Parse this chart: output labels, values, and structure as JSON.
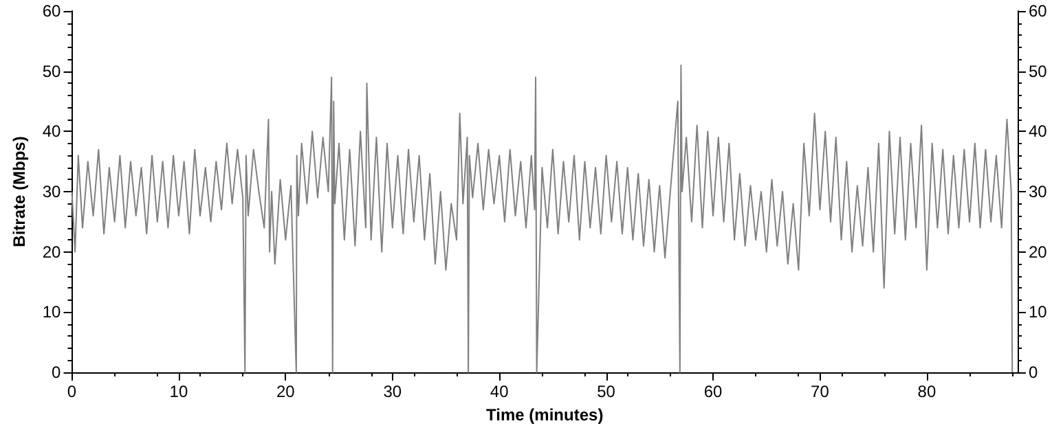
{
  "chart_data": {
    "type": "line",
    "xlabel": "Time (minutes)",
    "ylabel": "Bitrate (Mbps)",
    "xlim": [
      0,
      88.5
    ],
    "xticks": [
      0,
      10,
      20,
      30,
      40,
      50,
      60,
      70,
      80
    ],
    "ylim": [
      0,
      60
    ],
    "yticks": [
      0,
      10,
      20,
      30,
      40,
      50,
      60
    ],
    "y2lim": [
      0,
      60
    ],
    "y2ticks": [
      0,
      10,
      20,
      30,
      40,
      50,
      60
    ],
    "grid": false,
    "marker": "none",
    "line_style": "solid",
    "series": [
      {
        "color": "#808080",
        "x": [
          0,
          0.3,
          0.6,
          1,
          1.5,
          2,
          2.5,
          3,
          3.5,
          4,
          4.5,
          5,
          5.5,
          6,
          6.5,
          7,
          7.5,
          8,
          8.5,
          9,
          9.5,
          10,
          10.5,
          11,
          11.5,
          12,
          12.5,
          13,
          13.5,
          14,
          14.5,
          15,
          15.5,
          16,
          16.2,
          16.3,
          16.5,
          17,
          17.5,
          18,
          18.4,
          18.5,
          18.7,
          19,
          19.5,
          20,
          20.5,
          21,
          21.05,
          21.2,
          21.5,
          22,
          22.5,
          23,
          23.5,
          24,
          24.3,
          24.4,
          24.5,
          24.6,
          25,
          25.5,
          26,
          26.5,
          27,
          27.5,
          27.6,
          28,
          28.5,
          29,
          29.5,
          30,
          30.5,
          31,
          31.5,
          32,
          32.5,
          33,
          33.5,
          34,
          34.5,
          35,
          35.5,
          36,
          36.3,
          36.6,
          37,
          37.1,
          37.2,
          37.5,
          38,
          38.5,
          39,
          39.5,
          40,
          40.5,
          41,
          41.5,
          42,
          42.5,
          43,
          43.3,
          43.4,
          43.5,
          44,
          44.5,
          45,
          45.5,
          46,
          46.5,
          47,
          47.5,
          48,
          48.5,
          49,
          49.5,
          50,
          50.5,
          51,
          51.5,
          52,
          52.5,
          53,
          53.5,
          54,
          54.5,
          55,
          55.5,
          56,
          56.7,
          56.9,
          57,
          57.1,
          57.5,
          58,
          58.5,
          59,
          59.5,
          60,
          60.5,
          61,
          61.5,
          62,
          62.5,
          63,
          63.5,
          64,
          64.5,
          65,
          65.5,
          66,
          66.5,
          67,
          67.5,
          68,
          68.5,
          69,
          69.5,
          70,
          70.5,
          71,
          71.5,
          72,
          72.5,
          73,
          73.5,
          74,
          74.5,
          75,
          75.5,
          76,
          76.5,
          77,
          77.5,
          78,
          78.5,
          79,
          79.5,
          80,
          80.5,
          81,
          81.5,
          82,
          82.5,
          83,
          83.5,
          84,
          84.5,
          85,
          85.5,
          86,
          86.5,
          87,
          87.5,
          87.9,
          88
        ],
        "values": [
          30,
          20,
          36,
          24,
          35,
          26,
          37,
          23,
          34,
          25,
          36,
          24,
          35,
          26,
          34,
          23,
          36,
          25,
          35,
          24,
          36,
          26,
          35,
          23,
          37,
          26,
          34,
          25,
          35,
          27,
          38,
          28,
          37,
          29,
          0,
          36,
          26,
          37,
          30,
          24,
          42,
          20,
          30,
          18,
          32,
          22,
          31,
          0,
          36,
          26,
          38,
          28,
          40,
          29,
          39,
          30,
          49,
          0,
          45,
          28,
          38,
          22,
          37,
          21,
          40,
          24,
          48,
          22,
          39,
          20,
          38,
          24,
          36,
          23,
          37,
          25,
          36,
          22,
          33,
          18,
          30,
          17,
          28,
          22,
          43,
          28,
          39,
          0,
          36,
          29,
          38,
          27,
          37,
          28,
          36,
          25,
          37,
          26,
          35,
          24,
          36,
          27,
          49,
          0,
          34,
          24,
          37,
          23,
          35,
          25,
          36,
          22,
          35,
          24,
          34,
          23,
          36,
          25,
          35,
          23,
          34,
          22,
          33,
          21,
          32,
          20,
          31,
          19,
          30,
          45,
          0,
          51,
          30,
          39,
          25,
          41,
          24,
          40,
          26,
          39,
          25,
          38,
          22,
          33,
          21,
          31,
          22,
          30,
          20,
          32,
          21,
          30,
          18,
          28,
          17,
          38,
          26,
          43,
          27,
          40,
          25,
          39,
          22,
          35,
          20,
          31,
          21,
          34,
          20,
          38,
          14,
          40,
          23,
          39,
          22,
          38,
          24,
          41,
          17,
          38,
          24,
          37,
          23,
          36,
          24,
          37,
          25,
          38,
          24,
          37,
          25,
          36,
          24,
          42,
          30,
          0
        ]
      }
    ]
  }
}
